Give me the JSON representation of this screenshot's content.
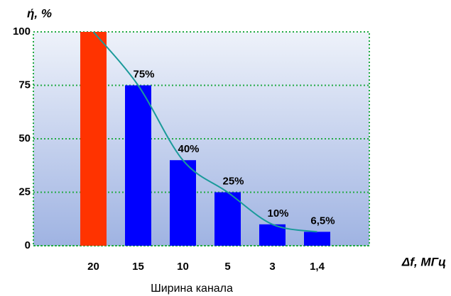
{
  "chart_data": {
    "type": "bar",
    "y_axis_label": "ή, %",
    "x_axis_label": "Δf, МГц",
    "subtitle": "Ширина канала",
    "categories": [
      "20",
      "15",
      "10",
      "5",
      "3",
      "1,4"
    ],
    "values": [
      100,
      75,
      40,
      25,
      10,
      6.5
    ],
    "value_labels": [
      null,
      "75%",
      "40%",
      "25%",
      "10%",
      "6,5%"
    ],
    "colors": [
      "#ff3300",
      "#0000ff",
      "#0000ff",
      "#0000ff",
      "#0000ff",
      "#0000ff"
    ],
    "trend_color": "#1a9a9a",
    "ylim": [
      0,
      100
    ],
    "yticks": [
      0,
      25,
      50,
      75,
      100
    ],
    "grid": true
  }
}
